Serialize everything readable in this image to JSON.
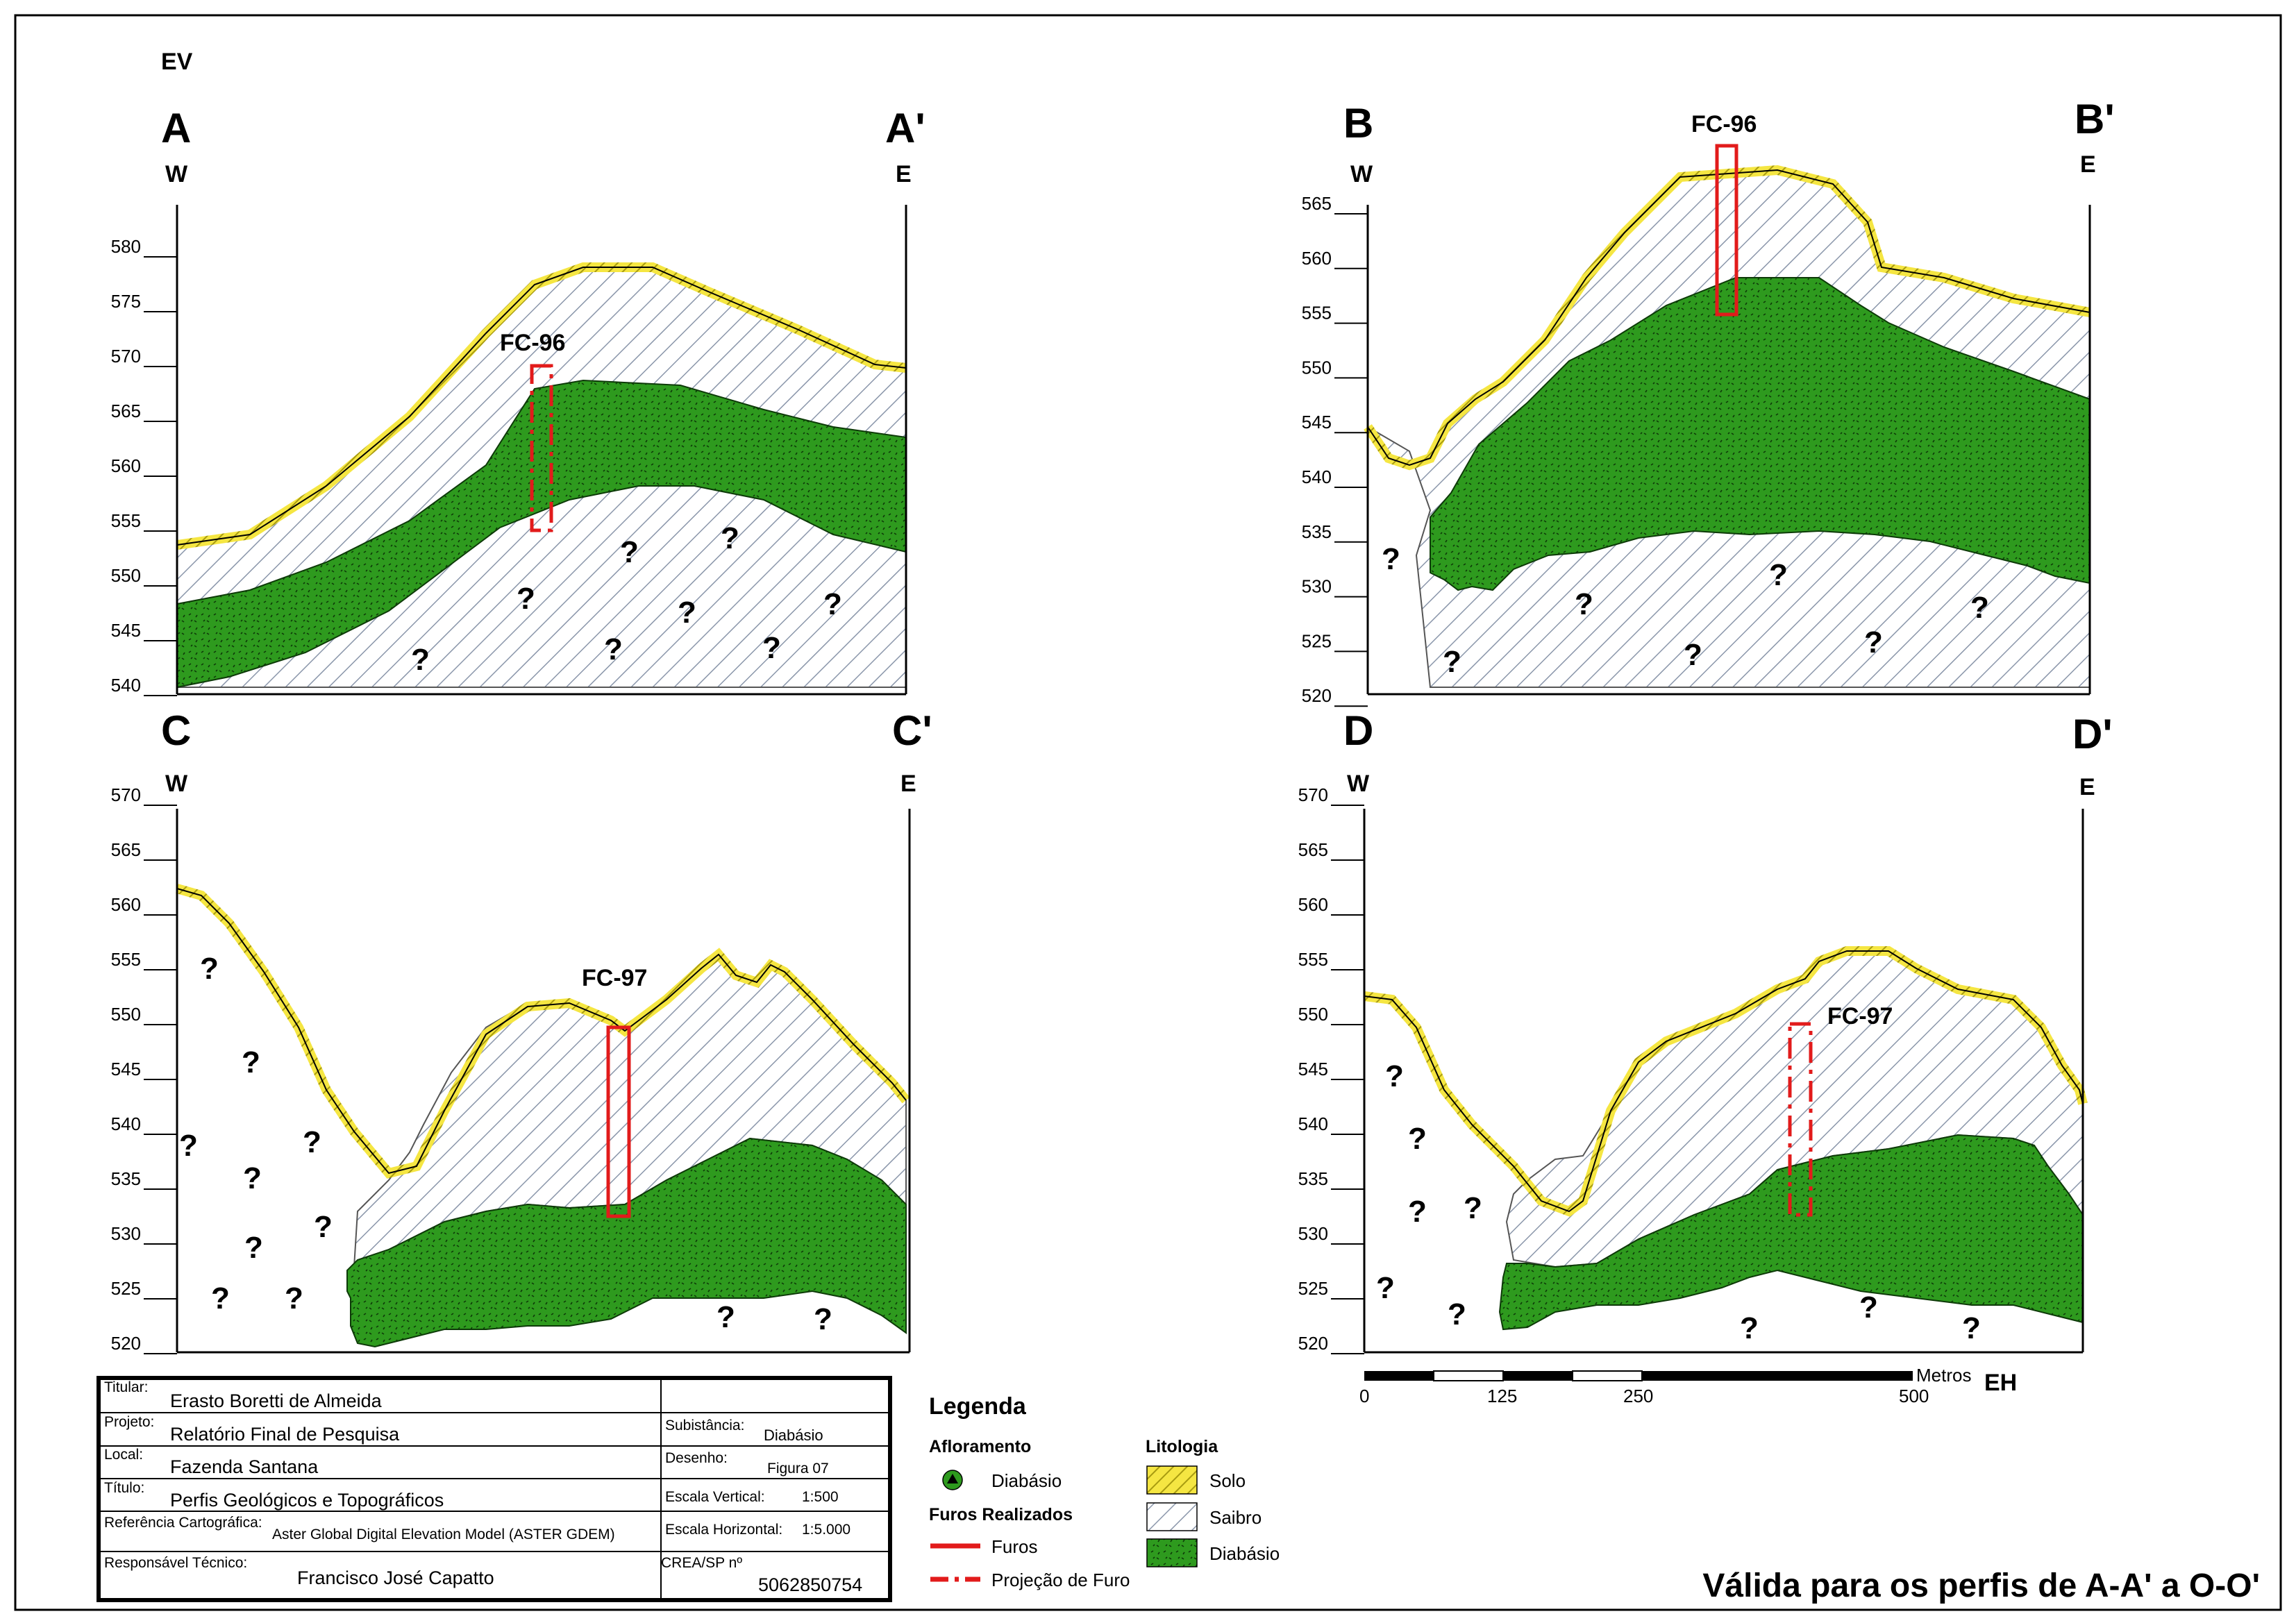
{
  "ev_label": "EV",
  "eh_label": "EH",
  "profiles": [
    {
      "id": "A",
      "start": "A",
      "end": "A'",
      "west": "W",
      "east": "E",
      "ticks": [
        "580",
        "575",
        "570",
        "565",
        "560",
        "555",
        "550",
        "545",
        "540"
      ],
      "hole": "FC-96",
      "hole_type": "projection"
    },
    {
      "id": "B",
      "start": "B",
      "end": "B'",
      "west": "W",
      "east": "E",
      "ticks": [
        "565",
        "560",
        "555",
        "550",
        "545",
        "540",
        "535",
        "530",
        "525",
        "520"
      ],
      "hole": "FC-96",
      "hole_type": "drilled"
    },
    {
      "id": "C",
      "start": "C",
      "end": "C'",
      "west": "W",
      "east": "E",
      "ticks": [
        "570",
        "565",
        "560",
        "555",
        "550",
        "545",
        "540",
        "535",
        "530",
        "525",
        "520"
      ],
      "hole": "FC-97",
      "hole_type": "drilled"
    },
    {
      "id": "D",
      "start": "D",
      "end": "D'",
      "west": "W",
      "east": "E",
      "ticks": [
        "570",
        "565",
        "560",
        "555",
        "550",
        "545",
        "540",
        "535",
        "530",
        "525",
        "520"
      ],
      "hole": "FC-97",
      "hole_type": "projection"
    }
  ],
  "unknown_mark": "?",
  "scale_bar": {
    "unit": "Metros",
    "labels": [
      "0",
      "125",
      "250",
      "500"
    ]
  },
  "title_block": {
    "titular_label": "Titular:",
    "titular_value": "Erasto Boretti de Almeida",
    "projeto_label": "Projeto:",
    "projeto_value": "Relatório Final de Pesquisa",
    "substancia_label": "Subistância:",
    "substancia_value": "Diabásio",
    "local_label": "Local:",
    "local_value": "Fazenda Santana",
    "desenho_label": "Desenho:",
    "desenho_value": "Figura 07",
    "titulo_label": "Título:",
    "titulo_value": "Perfis Geológicos e Topográficos",
    "escala_v_label": "Escala Vertical:",
    "escala_v_value": "1:500",
    "ref_label": "Referência Cartográfica:",
    "ref_value": "Aster Global Digital Elevation Model (ASTER GDEM)",
    "escala_h_label": "Escala Horizontal:",
    "escala_h_value": "1:5.000",
    "resp_label": "Responsável Técnico:",
    "resp_value": "Francisco José Capatto",
    "crea_label": "CREA/SP nº",
    "crea_value": "5062850754"
  },
  "legend": {
    "title": "Legenda",
    "afloramento_heading": "Afloramento",
    "afloramento_item": "Diabásio",
    "furos_heading": "Furos Realizados",
    "furos_item": "Furos",
    "projecao_item": "Projeção de Furo",
    "litologia_heading": "Litologia",
    "solo": "Solo",
    "saibro": "Saibro",
    "diabasio": "Diabásio"
  },
  "validity_note": "Válida para os perfis de A-A' a O-O'",
  "colors": {
    "solo": "#f5e642",
    "saibro": "#8a96aa",
    "diabasio": "#2e9a1e",
    "hole": "#e21b1b"
  }
}
